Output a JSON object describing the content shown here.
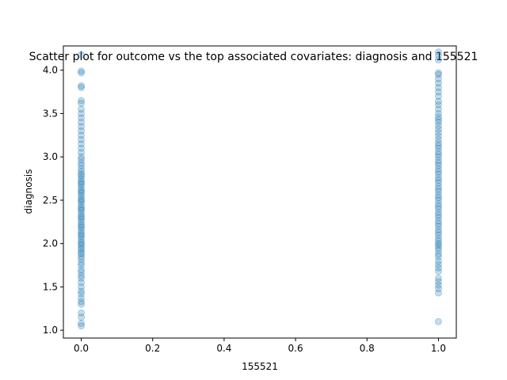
{
  "chart_data": {
    "type": "scatter",
    "title": "Scatter plot for outcome vs the top associated covariates: diagnosis and 155521",
    "xlabel": "155521",
    "ylabel": "diagnosis",
    "xlim": [
      -0.05,
      1.05
    ],
    "ylim": [
      0.91,
      4.28
    ],
    "xticks": [
      "0.0",
      "0.2",
      "0.4",
      "0.6",
      "0.8",
      "1.0"
    ],
    "yticks": [
      "1.0",
      "1.5",
      "2.0",
      "2.5",
      "3.0",
      "3.5",
      "4.0"
    ],
    "grid": false,
    "legend": "none",
    "marker_color": "#1f77b4",
    "marker_alpha": 0.25,
    "series": [
      {
        "x": 0,
        "y": [
          1.05,
          1.08,
          1.15,
          1.2,
          1.3,
          1.33,
          1.37,
          1.42,
          1.45,
          1.5,
          1.55,
          1.6,
          1.63,
          1.67,
          1.7,
          1.75,
          1.78,
          1.82,
          1.85,
          1.88,
          1.9,
          1.93,
          1.95,
          1.98,
          2.0,
          2.02,
          2.05,
          2.08,
          2.1,
          2.12,
          2.15,
          2.18,
          2.2,
          2.22,
          2.25,
          2.28,
          2.3,
          2.32,
          2.35,
          2.38,
          2.4,
          2.42,
          2.45,
          2.48,
          2.5,
          2.52,
          2.55,
          2.58,
          2.6,
          2.62,
          2.65,
          2.68,
          2.7,
          2.72,
          2.75,
          2.78,
          2.8,
          2.83,
          2.86,
          2.9,
          2.93,
          2.97,
          3.0,
          3.05,
          3.1,
          3.15,
          3.2,
          3.25,
          3.3,
          3.35,
          3.4,
          3.45,
          3.5,
          3.55,
          3.62,
          3.65,
          3.8,
          3.82,
          3.97,
          3.99,
          4.18
        ]
      },
      {
        "x": 1,
        "y": [
          1.1,
          1.43,
          1.48,
          1.52,
          1.56,
          1.6,
          1.68,
          1.72,
          1.76,
          1.8,
          1.85,
          1.88,
          1.92,
          1.95,
          1.98,
          2.0,
          2.03,
          2.06,
          2.1,
          2.13,
          2.16,
          2.2,
          2.23,
          2.26,
          2.3,
          2.33,
          2.36,
          2.4,
          2.43,
          2.46,
          2.5,
          2.53,
          2.56,
          2.6,
          2.63,
          2.66,
          2.7,
          2.73,
          2.76,
          2.8,
          2.83,
          2.86,
          2.9,
          2.93,
          2.96,
          3.0,
          3.03,
          3.06,
          3.1,
          3.13,
          3.16,
          3.2,
          3.24,
          3.28,
          3.32,
          3.36,
          3.4,
          3.43,
          3.46,
          3.5,
          3.55,
          3.6,
          3.64,
          3.7,
          3.75,
          3.8,
          3.85,
          3.9,
          3.95,
          3.97,
          4.12,
          4.17,
          4.21
        ]
      }
    ]
  }
}
